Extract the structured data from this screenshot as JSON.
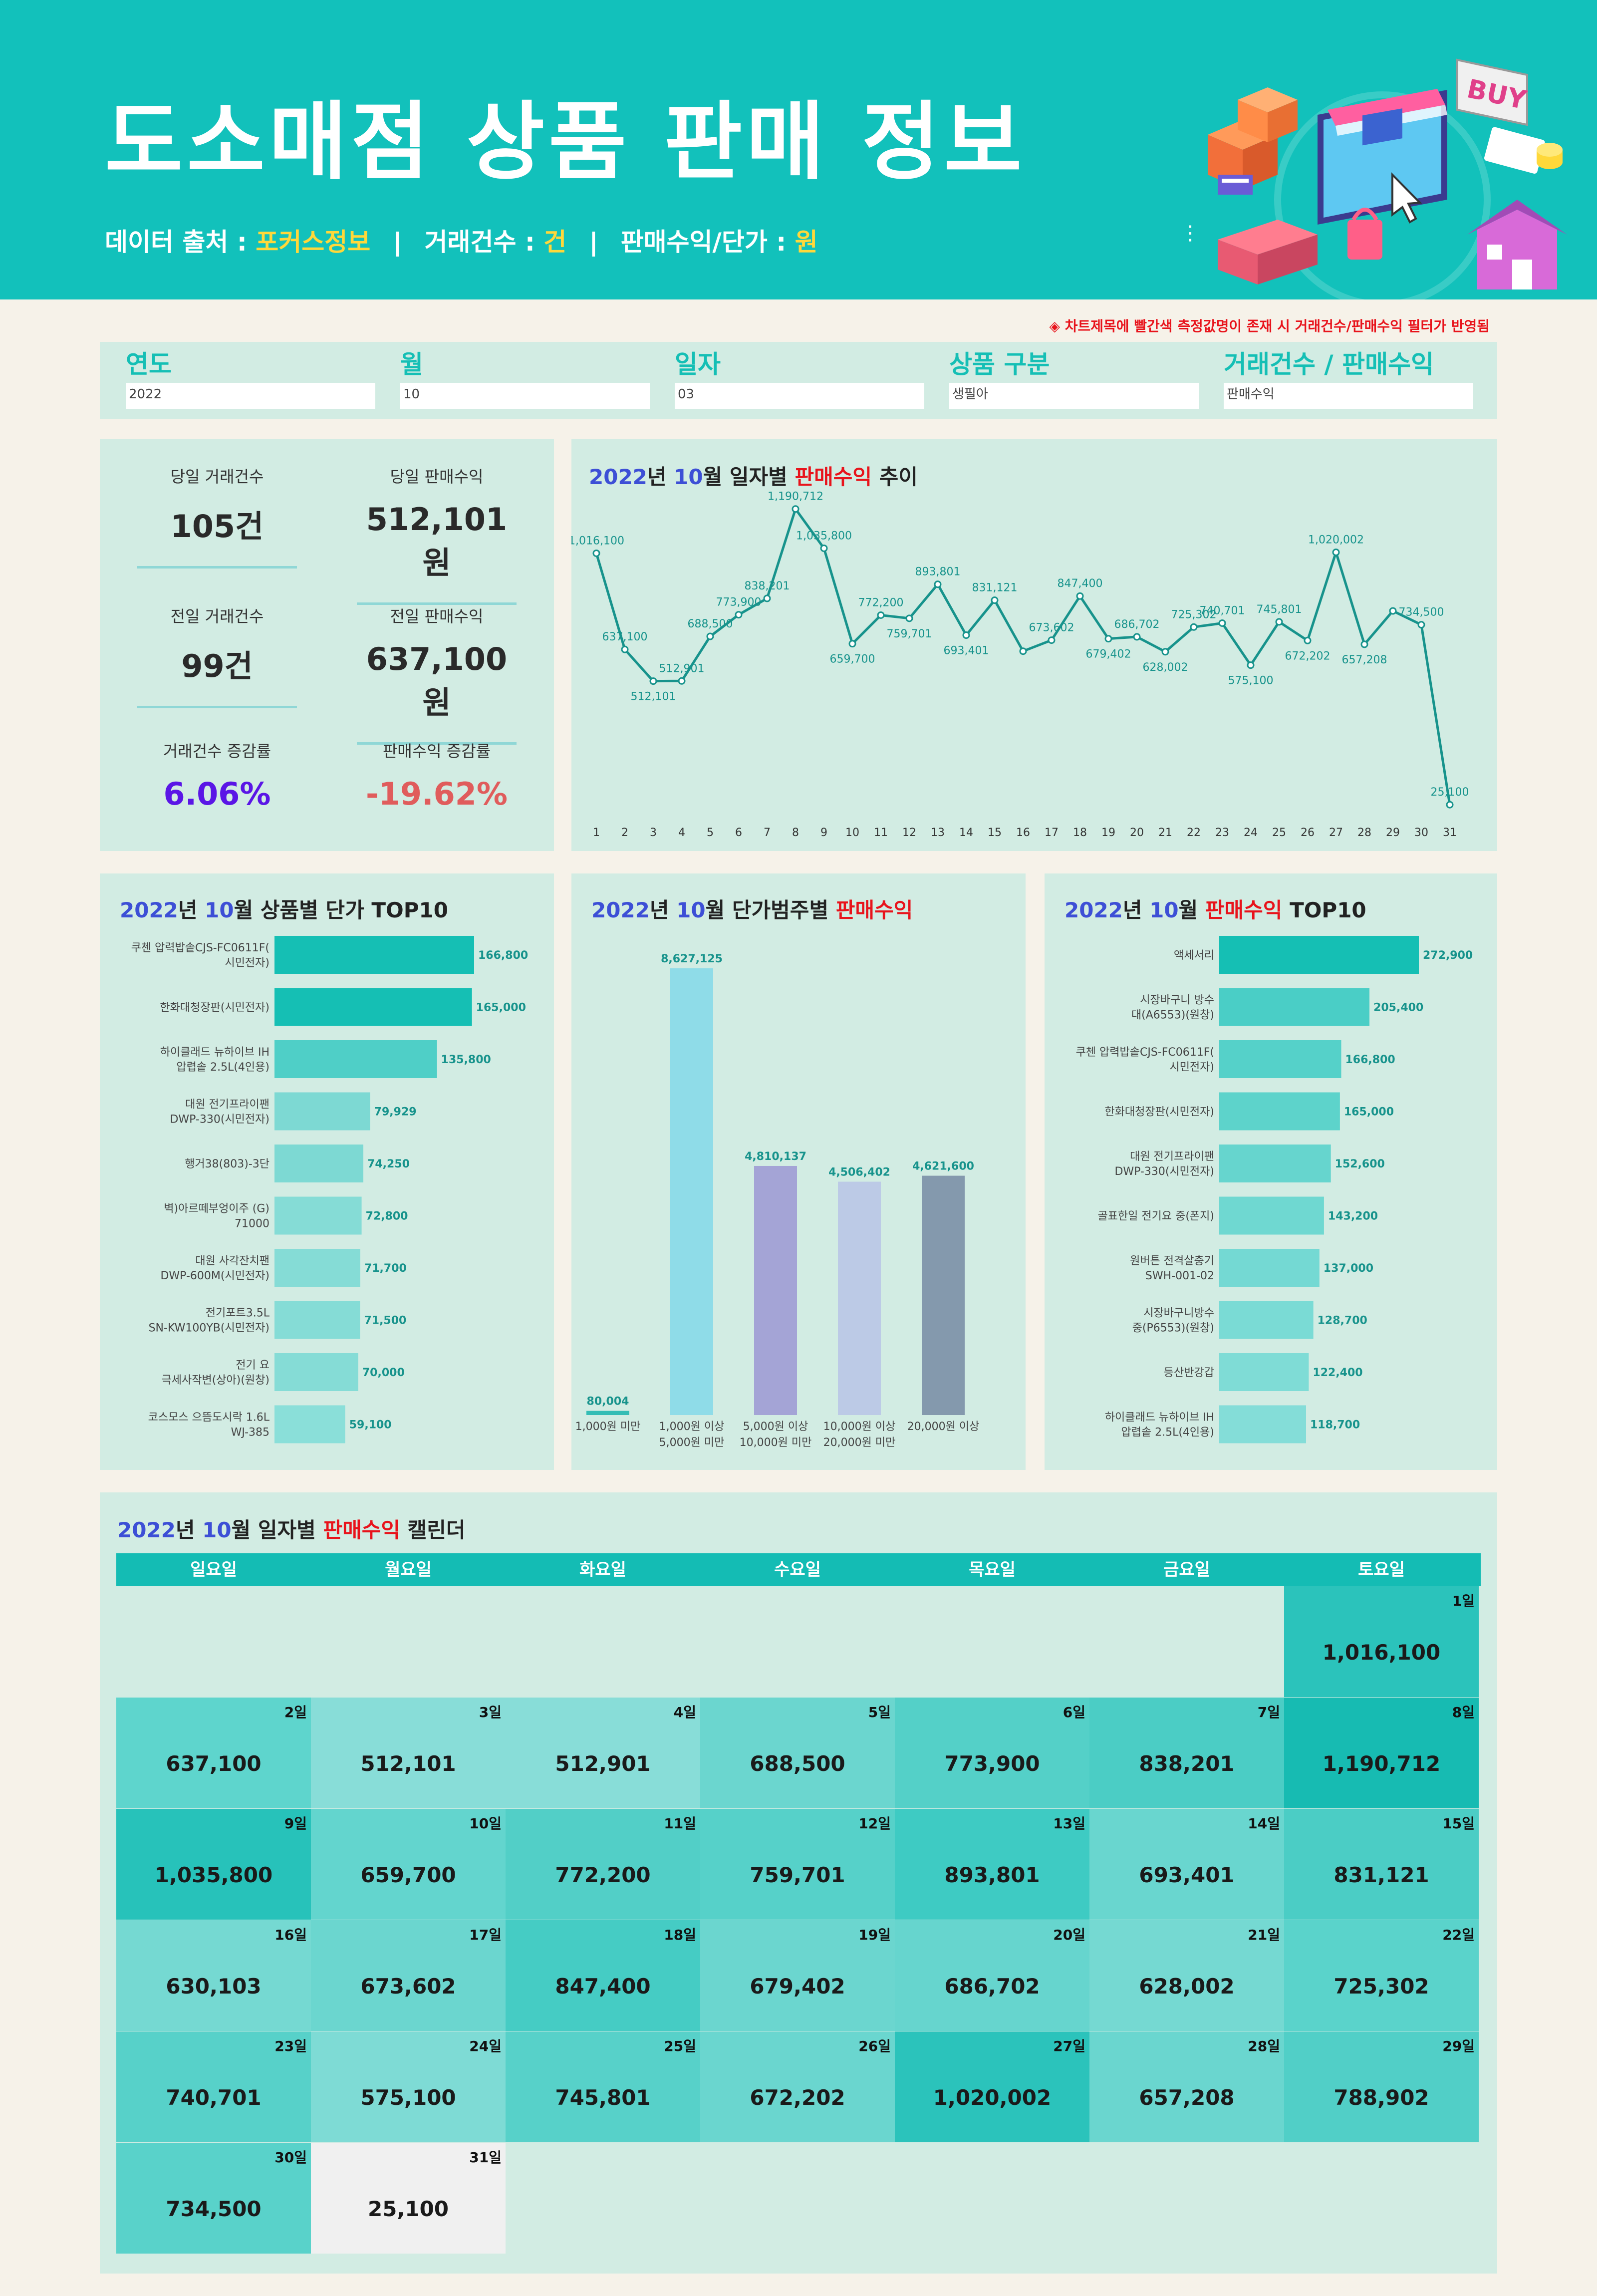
{
  "header": {
    "title": "도소매점 상품 판매 정보",
    "source_label": "데이터 출처 : ",
    "source_value": "포커스정보",
    "count_unit_label": "거래건수 : ",
    "count_unit_value": "건",
    "revenue_unit_label": "판매수익/단가 : ",
    "revenue_unit_value": "원",
    "separator": "|"
  },
  "notice": "◈ 차트제목에 빨간색 측정값명이 존재 시 거래건수/판매수익 필터가 반영됨",
  "filters": [
    {
      "label": "연도",
      "value": "2022"
    },
    {
      "label": "월",
      "value": "10"
    },
    {
      "label": "일자",
      "value": "03"
    },
    {
      "label": "상품 구분",
      "value": "생필아"
    },
    {
      "label": "거래건수 / 판매수익",
      "value": "판매수익"
    }
  ],
  "kpis": {
    "today_count_label": "당일 거래건수",
    "today_count": "105건",
    "today_rev_label": "당일 판매수익",
    "today_rev": "512,101원",
    "prev_count_label": "전일 거래건수",
    "prev_count": "99건",
    "prev_rev_label": "전일 판매수익",
    "prev_rev": "637,100원",
    "count_rate_label": "거래건수 증감률",
    "count_rate": "6.06%",
    "rev_rate_label": "판매수익 증감률",
    "rev_rate": "-19.62%"
  },
  "titles": {
    "year": "2022",
    "year_suffix": "년 ",
    "month": "10",
    "month_suffix": "월 ",
    "line_pre": "일자별 ",
    "line_red": "판매수익",
    "line_post": " 추이",
    "price_pre": "상품별 단가 TOP10",
    "range_pre": "단가범주별 ",
    "range_red": "판매수익",
    "top_red": "판매수익",
    "top_post": " TOP10",
    "cal_pre": "일자별 ",
    "cal_red": "판매수익",
    "cal_post": " 캘린더"
  },
  "chart_data": [
    {
      "type": "line",
      "title": "2022년 10월 일자별 판매수익 추이",
      "x": [
        1,
        2,
        3,
        4,
        5,
        6,
        7,
        8,
        9,
        10,
        11,
        12,
        13,
        14,
        15,
        16,
        17,
        18,
        19,
        20,
        21,
        22,
        23,
        24,
        25,
        26,
        27,
        28,
        29,
        30,
        31
      ],
      "y": [
        1016100,
        637100,
        512101,
        512901,
        688500,
        773900,
        838201,
        1190712,
        1035800,
        659700,
        772200,
        759701,
        893801,
        693401,
        831121,
        630103,
        673602,
        847400,
        679402,
        686702,
        628002,
        725302,
        740701,
        575100,
        745801,
        672202,
        1020002,
        657208,
        788902,
        734500,
        25100
      ],
      "labels": [
        "1,016,100",
        "637,100",
        "512,101",
        "512,901",
        "688,500",
        "773,900",
        "838,201",
        "1,190,712",
        "1,035,800",
        "659,700",
        "772,200",
        "759,701",
        "893,801",
        "693,401",
        "831,121",
        "",
        "673,602",
        "847,400",
        "679,402",
        "686,702",
        "628,002",
        "725,302",
        "740,701",
        "575,100",
        "745,801",
        "672,202",
        "1,020,002",
        "657,208",
        "",
        "734,500",
        "25,100"
      ],
      "ylim": [
        0,
        1200000
      ],
      "grid": false,
      "color": "#17938c"
    },
    {
      "type": "bar",
      "orientation": "horizontal",
      "title": "2022년 10월 상품별 단가 TOP10",
      "categories": [
        "쿠첸 압력밥솥CJS-FC0611F(시민전자)",
        "한화대청장판(시민전자)",
        "하이클래드 뉴하이브 IH 압렵솥 2.5L(4인용)",
        "대원 전기프라이팬 DWP-330(시민전자)",
        "행거38(803)-3단",
        "벽)아르떼부엉이주 (G) 71000",
        "대원 사각잔치팬 DWP-600M(시민전자)",
        "전기포트3.5L SN-KW100YB(시민전자)",
        "전기 요 극세사작변(상아)(원창)",
        "코스모스 으뜸도시락 1.6L WJ-385"
      ],
      "category_lines": [
        [
          "쿠첸 압력밥솥CJS-FC0611F(",
          "시민전자)"
        ],
        [
          "한화대청장판(시민전자)"
        ],
        [
          "하이클래드 뉴하이브 IH",
          "압렵솥 2.5L(4인용)"
        ],
        [
          "대원 전기프라이팬",
          "DWP-330(시민전자)"
        ],
        [
          "행거38(803)-3단"
        ],
        [
          "벽)아르떼부엉이주 (G)",
          "71000"
        ],
        [
          "대원 사각잔치팬",
          "DWP-600M(시민전자)"
        ],
        [
          "전기포트3.5L",
          "SN-KW100YB(시민전자)"
        ],
        [
          "전기 요",
          "극세사작변(상아)(원창)"
        ],
        [
          "코스모스 으뜸도시락 1.6L",
          "WJ-385"
        ]
      ],
      "values": [
        166800,
        165000,
        135800,
        79929,
        74250,
        72800,
        71700,
        71500,
        70000,
        59100
      ],
      "value_labels": [
        "166,800",
        "165,000",
        "135,800",
        "79,929",
        "74,250",
        "72,800",
        "71,700",
        "71,500",
        "70,000",
        "59,100"
      ],
      "colors": [
        "#15bfb4",
        "#15bfb4",
        "#4fcfc7",
        "#7dd9d3",
        "#7dd9d3",
        "#85dcd6",
        "#85dcd6",
        "#85dcd6",
        "#85dcd6",
        "#8adfd9"
      ]
    },
    {
      "type": "bar",
      "title": "2022년 10월 단가범주별 판매수익",
      "categories": [
        "1,000원 미만",
        "1,000원 이상 5,000원 미만",
        "5,000원 이상 10,000원 미만",
        "10,000원 이상 20,000원 미만",
        "20,000원 이상"
      ],
      "category_lines": [
        [
          "1,000원 미만"
        ],
        [
          "1,000원 이상",
          "5,000원 미만"
        ],
        [
          "5,000원 이상",
          "10,000원 미만"
        ],
        [
          "10,000원 이상",
          "20,000원 미만"
        ],
        [
          "20,000원 이상"
        ]
      ],
      "values": [
        80004,
        8627125,
        4810137,
        4506402,
        4621600
      ],
      "value_labels": [
        "80,004",
        "8,627,125",
        "4,810,137",
        "4,506,402",
        "4,621,600"
      ],
      "colors": [
        "#34bdb5",
        "#8fdce8",
        "#a4a4d6",
        "#bccae6",
        "#8499ad"
      ],
      "ylim": [
        0,
        8627125
      ]
    },
    {
      "type": "bar",
      "orientation": "horizontal",
      "title": "2022년 10월 판매수익 TOP10",
      "categories": [
        "액세서리",
        "시장바구니 방수 대(A6553)(원창)",
        "쿠첸 압력밥솥CJS-FC0611F(시민전자)",
        "한화대청장판(시민전자)",
        "대원 전기프라이팬 DWP-330(시민전자)",
        "골표한일 전기요 중(폰지)",
        "원버튼 전격살충기 SWH-001-02",
        "시장바구니방수 중(P6553)(원창)",
        "등산반강갑",
        "하이클래드 뉴하이브 IH 압렵솥 2.5L(4인용)"
      ],
      "category_lines": [
        [
          "액세서리"
        ],
        [
          "시장바구니 방수",
          "대(A6553)(원창)"
        ],
        [
          "쿠첸 압력밥솥CJS-FC0611F(",
          "시민전자)"
        ],
        [
          "한화대청장판(시민전자)"
        ],
        [
          "대원 전기프라이팬",
          "DWP-330(시민전자)"
        ],
        [
          "골표한일 전기요 중(폰지)"
        ],
        [
          "원버튼 전격살충기",
          "SWH-001-02"
        ],
        [
          "시장바구니방수",
          "중(P6553)(원창)"
        ],
        [
          "등산반강갑"
        ],
        [
          "하이클래드 뉴하이브 IH",
          "압렵솥 2.5L(4인용)"
        ]
      ],
      "values": [
        272900,
        205400,
        166800,
        165000,
        152600,
        143200,
        137000,
        128700,
        122400,
        118700
      ],
      "value_labels": [
        "272,900",
        "205,400",
        "166,800",
        "165,000",
        "152,600",
        "143,200",
        "137,000",
        "128,700",
        "122,400",
        "118,700"
      ],
      "colors": [
        "#15bfb4",
        "#4acec6",
        "#55d1c9",
        "#5dd3cb",
        "#66d5ce",
        "#6fd8d1",
        "#74d9d3",
        "#7adbd5",
        "#7fdcd6",
        "#84ddd8"
      ]
    }
  ],
  "calendar": {
    "weekdays": [
      "일요일",
      "월요일",
      "화요일",
      "수요일",
      "목요일",
      "금요일",
      "토요일"
    ],
    "days": [
      {
        "day": "1일",
        "amt": "1,016,100",
        "col": 6,
        "row": 0,
        "color": "#2bc3bb"
      },
      {
        "day": "2일",
        "amt": "637,100",
        "col": 0,
        "row": 1,
        "color": "#5ed5cd"
      },
      {
        "day": "3일",
        "amt": "512,101",
        "col": 1,
        "row": 1,
        "color": "#88ddd8"
      },
      {
        "day": "4일",
        "amt": "512,901",
        "col": 2,
        "row": 1,
        "color": "#88ddd8"
      },
      {
        "day": "5일",
        "amt": "688,500",
        "col": 3,
        "row": 1,
        "color": "#6bd6cf"
      },
      {
        "day": "6일",
        "amt": "773,900",
        "col": 4,
        "row": 1,
        "color": "#54d0c8"
      },
      {
        "day": "7일",
        "amt": "838,201",
        "col": 5,
        "row": 1,
        "color": "#4bcdc5"
      },
      {
        "day": "8일",
        "amt": "1,190,712",
        "col": 6,
        "row": 1,
        "color": "#17bbb2"
      },
      {
        "day": "9일",
        "amt": "1,035,800",
        "col": 0,
        "row": 2,
        "color": "#27c2ba"
      },
      {
        "day": "10일",
        "amt": "659,700",
        "col": 1,
        "row": 2,
        "color": "#63d5ce"
      },
      {
        "day": "11일",
        "amt": "772,200",
        "col": 2,
        "row": 2,
        "color": "#52cfc7"
      },
      {
        "day": "12일",
        "amt": "759,701",
        "col": 3,
        "row": 2,
        "color": "#56d1c9"
      },
      {
        "day": "13일",
        "amt": "893,801",
        "col": 4,
        "row": 2,
        "color": "#3ecbc3"
      },
      {
        "day": "14일",
        "amt": "693,401",
        "col": 5,
        "row": 2,
        "color": "#69d6cf"
      },
      {
        "day": "15일",
        "amt": "831,121",
        "col": 6,
        "row": 2,
        "color": "#4bcdc5"
      },
      {
        "day": "16일",
        "amt": "630,103",
        "col": 0,
        "row": 3,
        "color": "#75d9d2"
      },
      {
        "day": "17일",
        "amt": "673,602",
        "col": 1,
        "row": 3,
        "color": "#6bd6cf"
      },
      {
        "day": "18일",
        "amt": "847,400",
        "col": 2,
        "row": 3,
        "color": "#45ccc4"
      },
      {
        "day": "19일",
        "amt": "679,402",
        "col": 3,
        "row": 3,
        "color": "#6bd6cf"
      },
      {
        "day": "20일",
        "amt": "686,702",
        "col": 4,
        "row": 3,
        "color": "#66d5ce"
      },
      {
        "day": "21일",
        "amt": "628,002",
        "col": 5,
        "row": 3,
        "color": "#75d9d2"
      },
      {
        "day": "22일",
        "amt": "725,302",
        "col": 6,
        "row": 3,
        "color": "#5ad3cb"
      },
      {
        "day": "23일",
        "amt": "740,701",
        "col": 0,
        "row": 4,
        "color": "#57d1c9"
      },
      {
        "day": "24일",
        "amt": "575,100",
        "col": 1,
        "row": 4,
        "color": "#7edbd5"
      },
      {
        "day": "25일",
        "amt": "745,801",
        "col": 2,
        "row": 4,
        "color": "#57d1c9"
      },
      {
        "day": "26일",
        "amt": "672,202",
        "col": 3,
        "row": 4,
        "color": "#6ad6cf"
      },
      {
        "day": "27일",
        "amt": "1,020,002",
        "col": 4,
        "row": 4,
        "color": "#2bc3bb"
      },
      {
        "day": "28일",
        "amt": "657,208",
        "col": 5,
        "row": 4,
        "color": "#6ad6cf"
      },
      {
        "day": "29일",
        "amt": "788,902",
        "col": 6,
        "row": 4,
        "color": "#51cfc7"
      },
      {
        "day": "30일",
        "amt": "734,500",
        "col": 0,
        "row": 5,
        "color": "#59d2ca"
      },
      {
        "day": "31일",
        "amt": "25,100",
        "col": 1,
        "row": 5,
        "color": "#f0f0f0"
      }
    ]
  },
  "illustration": {
    "buy_sign": "BUY"
  },
  "colors": {
    "teal": "#12c1bb",
    "panel": "#d2ece3",
    "accent_red": "#e8131b",
    "accent_blue": "#3d4fd6",
    "yellow": "#ffd83a"
  }
}
